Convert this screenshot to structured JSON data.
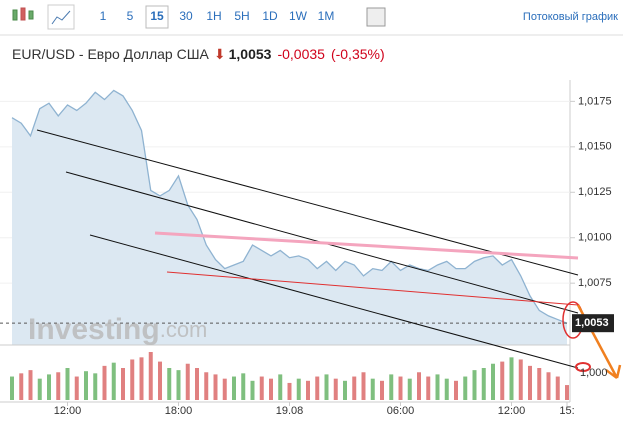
{
  "toolbar": {
    "intervals": [
      "1",
      "5",
      "15",
      "30",
      "1H",
      "5H",
      "1D",
      "1W",
      "1M"
    ],
    "selected": "15",
    "stream_link": "Потоковый график"
  },
  "header": {
    "symbol": "EUR/USD - Евро Доллар США",
    "price": "1,0053",
    "change": "-0,0035",
    "change_pct": "(-0,35%)"
  },
  "chart_data": {
    "type": "area",
    "categories": [
      null,
      null,
      null,
      null,
      null,
      null,
      "12:00",
      null,
      null,
      null,
      null,
      null,
      null,
      null,
      null,
      null,
      null,
      null,
      "18:00",
      null,
      null,
      null,
      null,
      null,
      null,
      null,
      null,
      null,
      null,
      null,
      "19.08",
      null,
      null,
      null,
      null,
      null,
      null,
      null,
      null,
      null,
      null,
      null,
      "06:00",
      null,
      null,
      null,
      null,
      null,
      null,
      null,
      null,
      null,
      null,
      null,
      "12:00",
      null,
      null,
      null,
      null,
      null,
      "15:"
    ],
    "series": [
      {
        "name": "EUR/USD",
        "color": "#8fb3d1",
        "fill": "#dce8f2",
        "values": [
          1.0166,
          1.0163,
          1.0156,
          1.0171,
          1.0174,
          1.0167,
          1.0173,
          1.017,
          1.0174,
          1.018,
          1.0176,
          1.0181,
          1.0178,
          1.017,
          1.0159,
          1.0126,
          1.0123,
          1.0126,
          1.0134,
          1.0118,
          1.011,
          1.0096,
          1.0088,
          1.0083,
          1.0085,
          1.0087,
          1.0096,
          1.0093,
          1.009,
          1.0093,
          1.0089,
          1.009,
          1.0088,
          1.0083,
          1.0087,
          1.0082,
          1.0087,
          1.0085,
          1.0079,
          1.0083,
          1.0082,
          1.0087,
          1.0082,
          1.0085,
          1.0083,
          1.0082,
          1.0085,
          1.0087,
          1.0083,
          1.0083,
          1.0087,
          1.0089,
          1.009,
          1.0085,
          1.0088,
          1.0079,
          1.0068,
          1.006,
          1.0057,
          1.0055,
          1.0053
        ]
      }
    ],
    "volume": {
      "up_color": "#7fbf7f",
      "down_color": "#e08080",
      "values": [
        22,
        25,
        28,
        20,
        24,
        26,
        30,
        22,
        27,
        25,
        32,
        35,
        30,
        38,
        40,
        45,
        36,
        30,
        28,
        34,
        30,
        26,
        24,
        20,
        22,
        25,
        18,
        22,
        20,
        24,
        16,
        20,
        18,
        22,
        24,
        20,
        18,
        22,
        26,
        20,
        18,
        24,
        22,
        20,
        26,
        22,
        24,
        20,
        18,
        22,
        28,
        30,
        34,
        36,
        40,
        38,
        32,
        30,
        26,
        22,
        14
      ]
    },
    "ylim": [
      1.0041,
      1.0184
    ],
    "yticks": [
      {
        "value": 1.0175,
        "label": "1,0175"
      },
      {
        "value": 1.015,
        "label": "1,0150"
      },
      {
        "value": 1.0125,
        "label": "1,0125"
      },
      {
        "value": 1.01,
        "label": "1,0100"
      },
      {
        "value": 1.0075,
        "label": "1,0075"
      }
    ],
    "axis_note": "1,000",
    "price_tag": {
      "value": 1.0053,
      "label": "1,0053"
    },
    "watermark": [
      "Investing",
      ".com"
    ],
    "grid": true
  }
}
